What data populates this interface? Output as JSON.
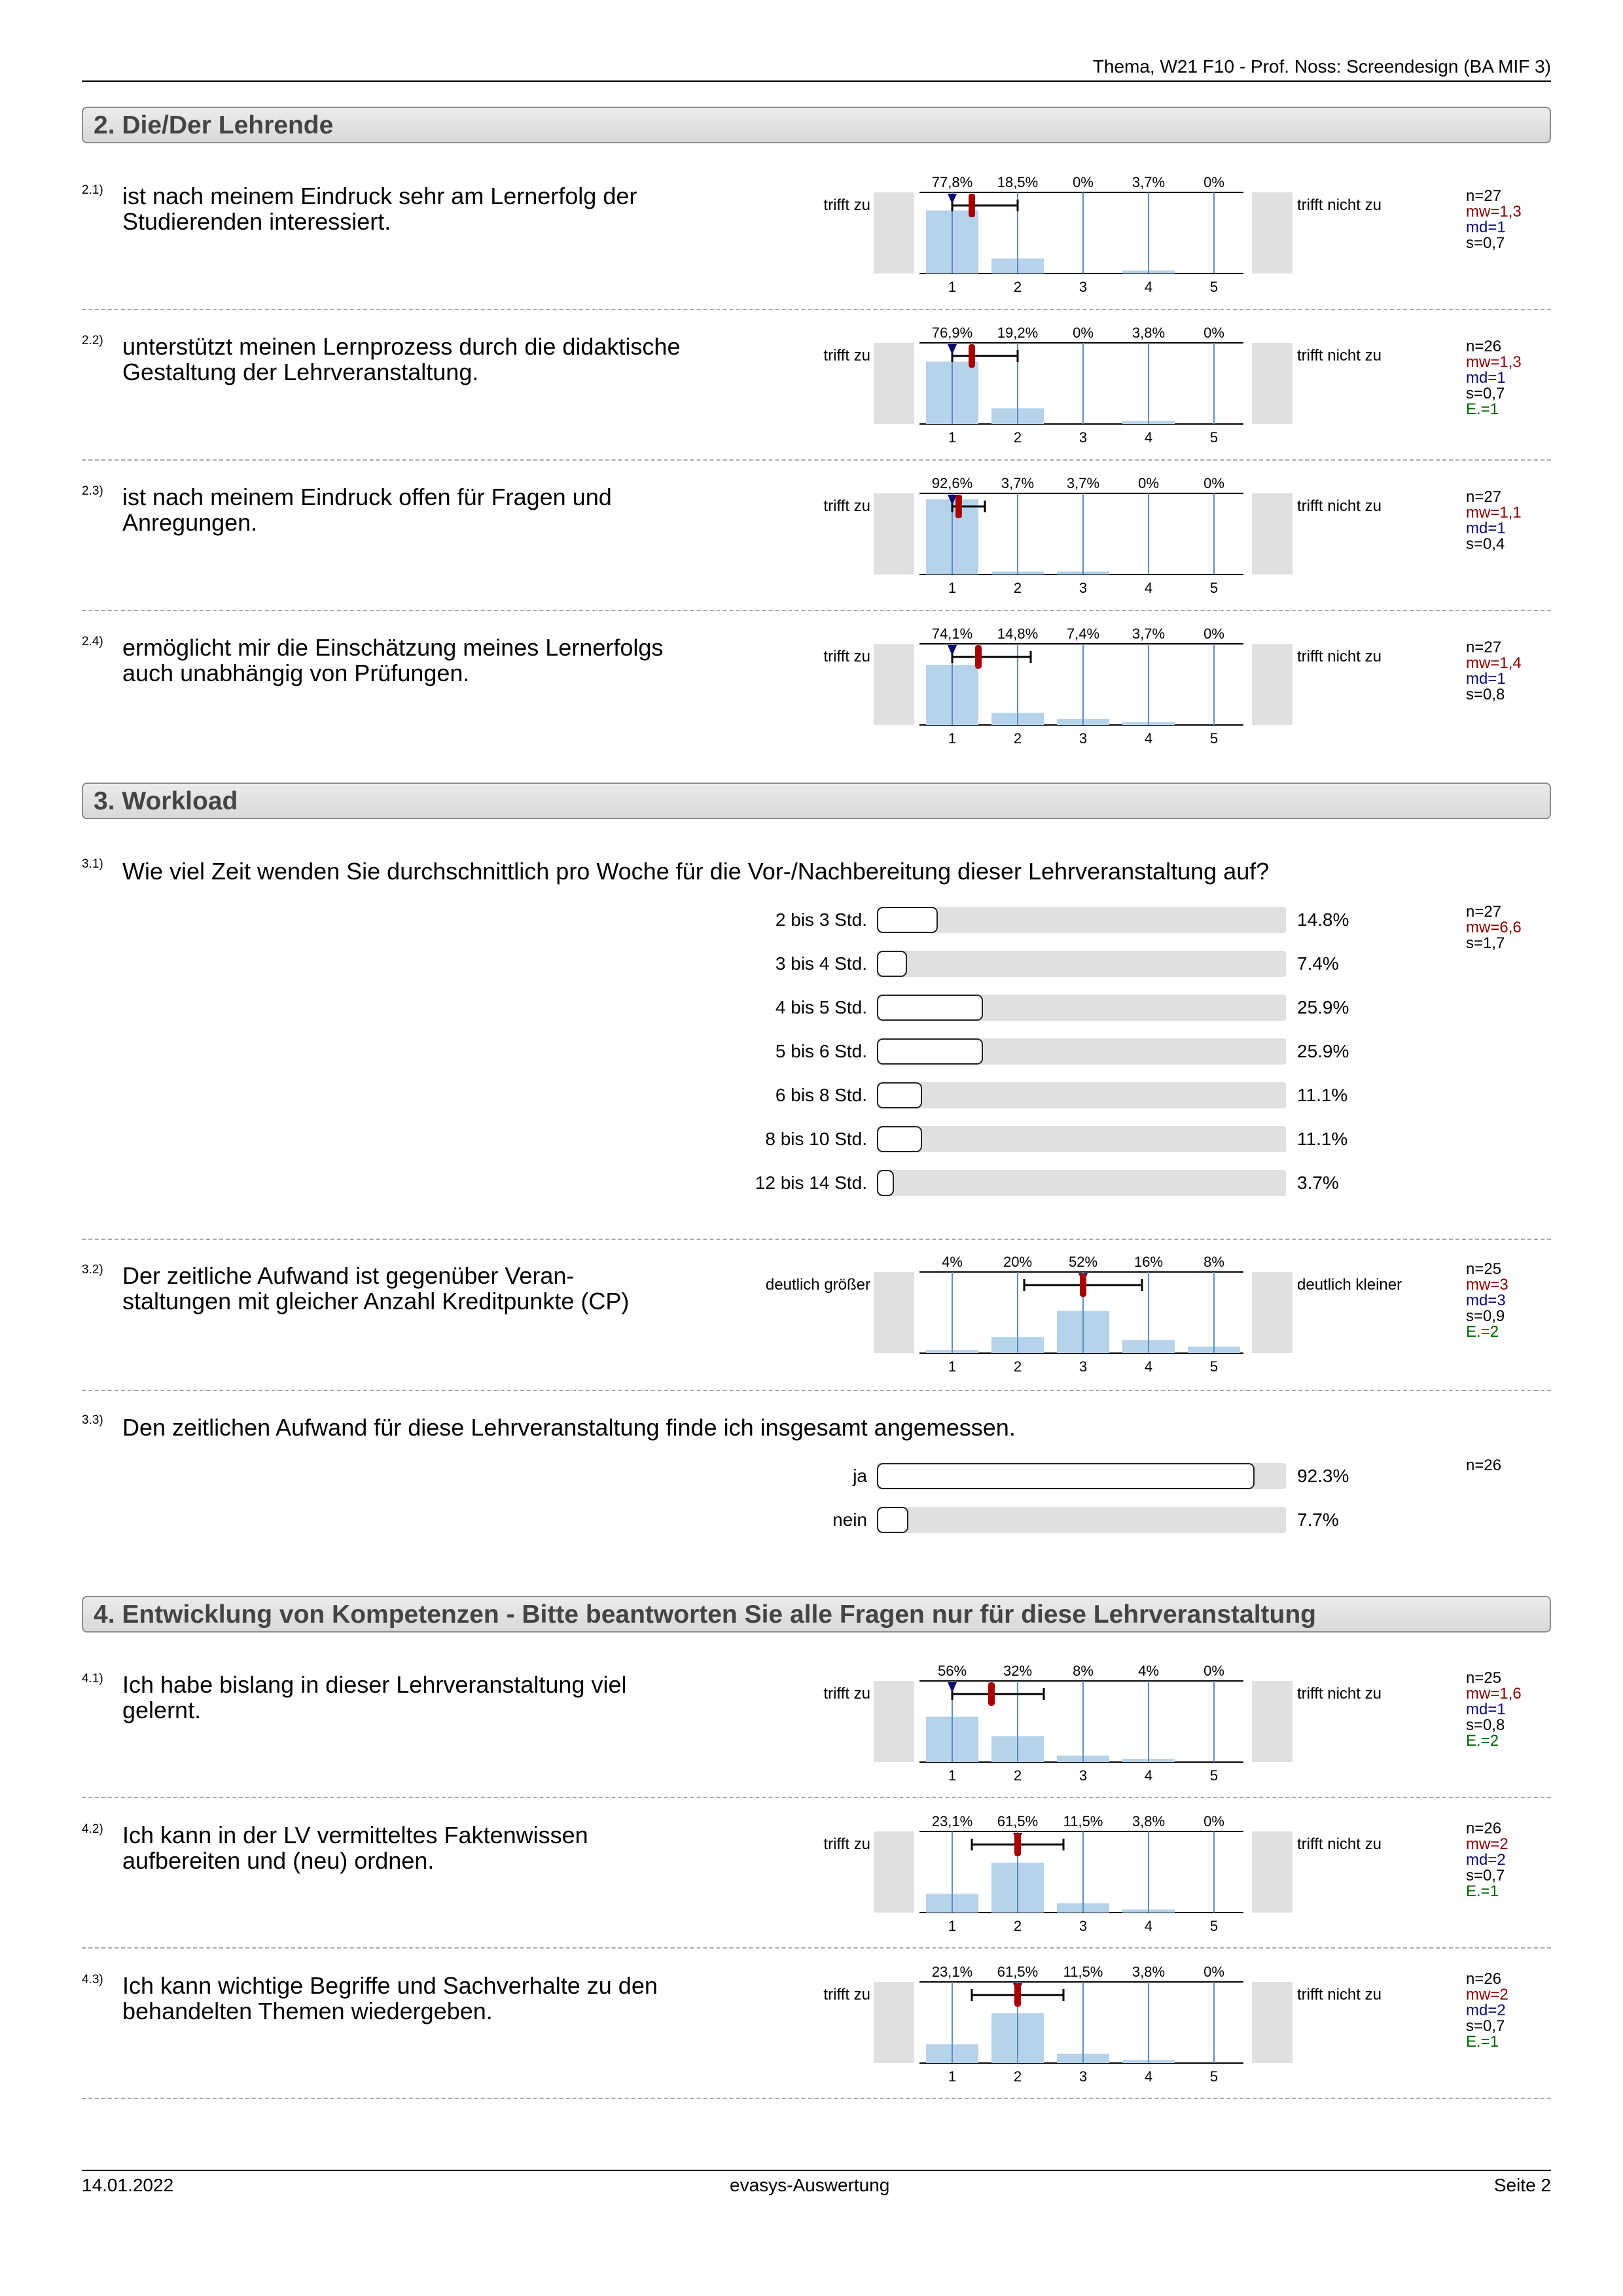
{
  "header": {
    "title": "Thema, W21 F10 - Prof. Noss: Screendesign (BA MIF 3)"
  },
  "sections": [
    {
      "label": "2. Die/Der Lehrende"
    },
    {
      "label": "3. Workload"
    },
    {
      "label": "4. Entwicklung von Kompetenzen - Bitte beantworten Sie alle Fragen nur für diese Lehrveranstaltung"
    }
  ],
  "questions": {
    "q21": {
      "num": "2.1)",
      "text": "ist nach meinem Eindruck sehr am Lernerfolg der Studierenden interessiert.",
      "left": "trifft zu",
      "right": "trifft nicht zu",
      "pcts": [
        "77,8%",
        "18,5%",
        "0%",
        "3,7%",
        "0%"
      ],
      "values": [
        77.8,
        18.5,
        0,
        3.7,
        0
      ],
      "mw": 1.3,
      "md": 1,
      "s": 0.7,
      "stats": {
        "n": "n=27",
        "mw": "mw=1,3",
        "md": "md=1",
        "s": "s=0,7"
      }
    },
    "q22": {
      "num": "2.2)",
      "text": "unterstützt meinen Lernprozess durch die didaktische Gestaltung der Lehrveranstaltung.",
      "left": "trifft zu",
      "right": "trifft nicht zu",
      "pcts": [
        "76,9%",
        "19,2%",
        "0%",
        "3,8%",
        "0%"
      ],
      "values": [
        76.9,
        19.2,
        0,
        3.8,
        0
      ],
      "mw": 1.3,
      "md": 1,
      "s": 0.7,
      "stats": {
        "n": "n=26",
        "mw": "mw=1,3",
        "md": "md=1",
        "s": "s=0,7",
        "e": "E.=1"
      }
    },
    "q23": {
      "num": "2.3)",
      "text": "ist nach meinem Eindruck offen für Fragen und Anregungen.",
      "left": "trifft zu",
      "right": "trifft nicht zu",
      "pcts": [
        "92,6%",
        "3,7%",
        "3,7%",
        "0%",
        "0%"
      ],
      "values": [
        92.6,
        3.7,
        3.7,
        0,
        0
      ],
      "mw": 1.1,
      "md": 1,
      "s": 0.4,
      "stats": {
        "n": "n=27",
        "mw": "mw=1,1",
        "md": "md=1",
        "s": "s=0,4"
      }
    },
    "q24": {
      "num": "2.4)",
      "text": "ermöglicht mir die Einschätzung meines Lernerfolgs auch unabhängig von Prüfungen.",
      "left": "trifft zu",
      "right": "trifft nicht zu",
      "pcts": [
        "74,1%",
        "14,8%",
        "7,4%",
        "3,7%",
        "0%"
      ],
      "values": [
        74.1,
        14.8,
        7.4,
        3.7,
        0
      ],
      "mw": 1.4,
      "md": 1,
      "s": 0.8,
      "stats": {
        "n": "n=27",
        "mw": "mw=1,4",
        "md": "md=1",
        "s": "s=0,8"
      }
    },
    "q31": {
      "num": "3.1)",
      "text": "Wie viel Zeit wenden Sie durchschnittlich pro Woche für die Vor-/Nachbereitung dieser Lehrveranstaltung auf?",
      "options": [
        {
          "label": "2 bis 3 Std.",
          "pct": "14.8%",
          "value": 14.8
        },
        {
          "label": "3 bis 4 Std.",
          "pct": "7.4%",
          "value": 7.4
        },
        {
          "label": "4 bis 5 Std.",
          "pct": "25.9%",
          "value": 25.9
        },
        {
          "label": "5 bis 6 Std.",
          "pct": "25.9%",
          "value": 25.9
        },
        {
          "label": "6 bis 8 Std.",
          "pct": "11.1%",
          "value": 11.1
        },
        {
          "label": "8 bis 10 Std.",
          "pct": "11.1%",
          "value": 11.1
        },
        {
          "label": "12 bis 14 Std.",
          "pct": "3.7%",
          "value": 3.7
        }
      ],
      "stats": {
        "n": "n=27",
        "mw": "mw=6,6",
        "s": "s=1,7"
      }
    },
    "q32": {
      "num": "3.2)",
      "text": "Der zeitliche Aufwand ist gegenüber Veran-staltungen mit gleicher Anzahl Kreditpunkte (CP)",
      "left": "deutlich größer",
      "right": "deutlich kleiner",
      "pcts": [
        "4%",
        "20%",
        "52%",
        "16%",
        "8%"
      ],
      "values": [
        4,
        20,
        52,
        16,
        8
      ],
      "mw": 3,
      "md": 3,
      "s": 0.9,
      "stats": {
        "n": "n=25",
        "mw": "mw=3",
        "md": "md=3",
        "s": "s=0,9",
        "e": "E.=2"
      }
    },
    "q33": {
      "num": "3.3)",
      "text": "Den zeitlichen Aufwand für diese Lehrveranstaltung finde ich insgesamt angemessen.",
      "options": [
        {
          "label": "ja",
          "pct": "92.3%",
          "value": 92.3
        },
        {
          "label": "nein",
          "pct": "7.7%",
          "value": 7.7
        }
      ],
      "stats": {
        "n": "n=26"
      }
    },
    "q41": {
      "num": "4.1)",
      "text": "Ich habe bislang in dieser Lehrveranstaltung viel gelernt.",
      "left": "trifft zu",
      "right": "trifft nicht zu",
      "pcts": [
        "56%",
        "32%",
        "8%",
        "4%",
        "0%"
      ],
      "values": [
        56,
        32,
        8,
        4,
        0
      ],
      "mw": 1.6,
      "md": 1,
      "s": 0.8,
      "stats": {
        "n": "n=25",
        "mw": "mw=1,6",
        "md": "md=1",
        "s": "s=0,8",
        "e": "E.=2"
      }
    },
    "q42": {
      "num": "4.2)",
      "text": "Ich kann in der LV vermitteltes Faktenwissen aufbereiten und (neu) ordnen.",
      "left": "trifft zu",
      "right": "trifft nicht zu",
      "pcts": [
        "23,1%",
        "61,5%",
        "11,5%",
        "3,8%",
        "0%"
      ],
      "values": [
        23.1,
        61.5,
        11.5,
        3.8,
        0
      ],
      "mw": 2,
      "md": 2,
      "s": 0.7,
      "stats": {
        "n": "n=26",
        "mw": "mw=2",
        "md": "md=2",
        "s": "s=0,7",
        "e": "E.=1"
      }
    },
    "q43": {
      "num": "4.3)",
      "text": "Ich kann wichtige Begriffe und Sachverhalte zu den behandelten Themen wiedergeben.",
      "left": "trifft zu",
      "right": "trifft nicht zu",
      "pcts": [
        "23,1%",
        "61,5%",
        "11,5%",
        "3,8%",
        "0%"
      ],
      "values": [
        23.1,
        61.5,
        11.5,
        3.8,
        0
      ],
      "mw": 2,
      "md": 2,
      "s": 0.7,
      "stats": {
        "n": "n=26",
        "mw": "mw=2",
        "md": "md=2",
        "s": "s=0,7",
        "e": "E.=1"
      }
    }
  },
  "scale_ticks": [
    "1",
    "2",
    "3",
    "4",
    "5"
  ],
  "footer": {
    "date": "14.01.2022",
    "center": "evasys-Auswertung",
    "page": "Seite 2"
  },
  "colors": {
    "bar": "#b7d3ea",
    "axis": "#5b8fc0",
    "mean": "#a80000",
    "median": "#0b0b6e",
    "gray": "#e0e0e0"
  }
}
